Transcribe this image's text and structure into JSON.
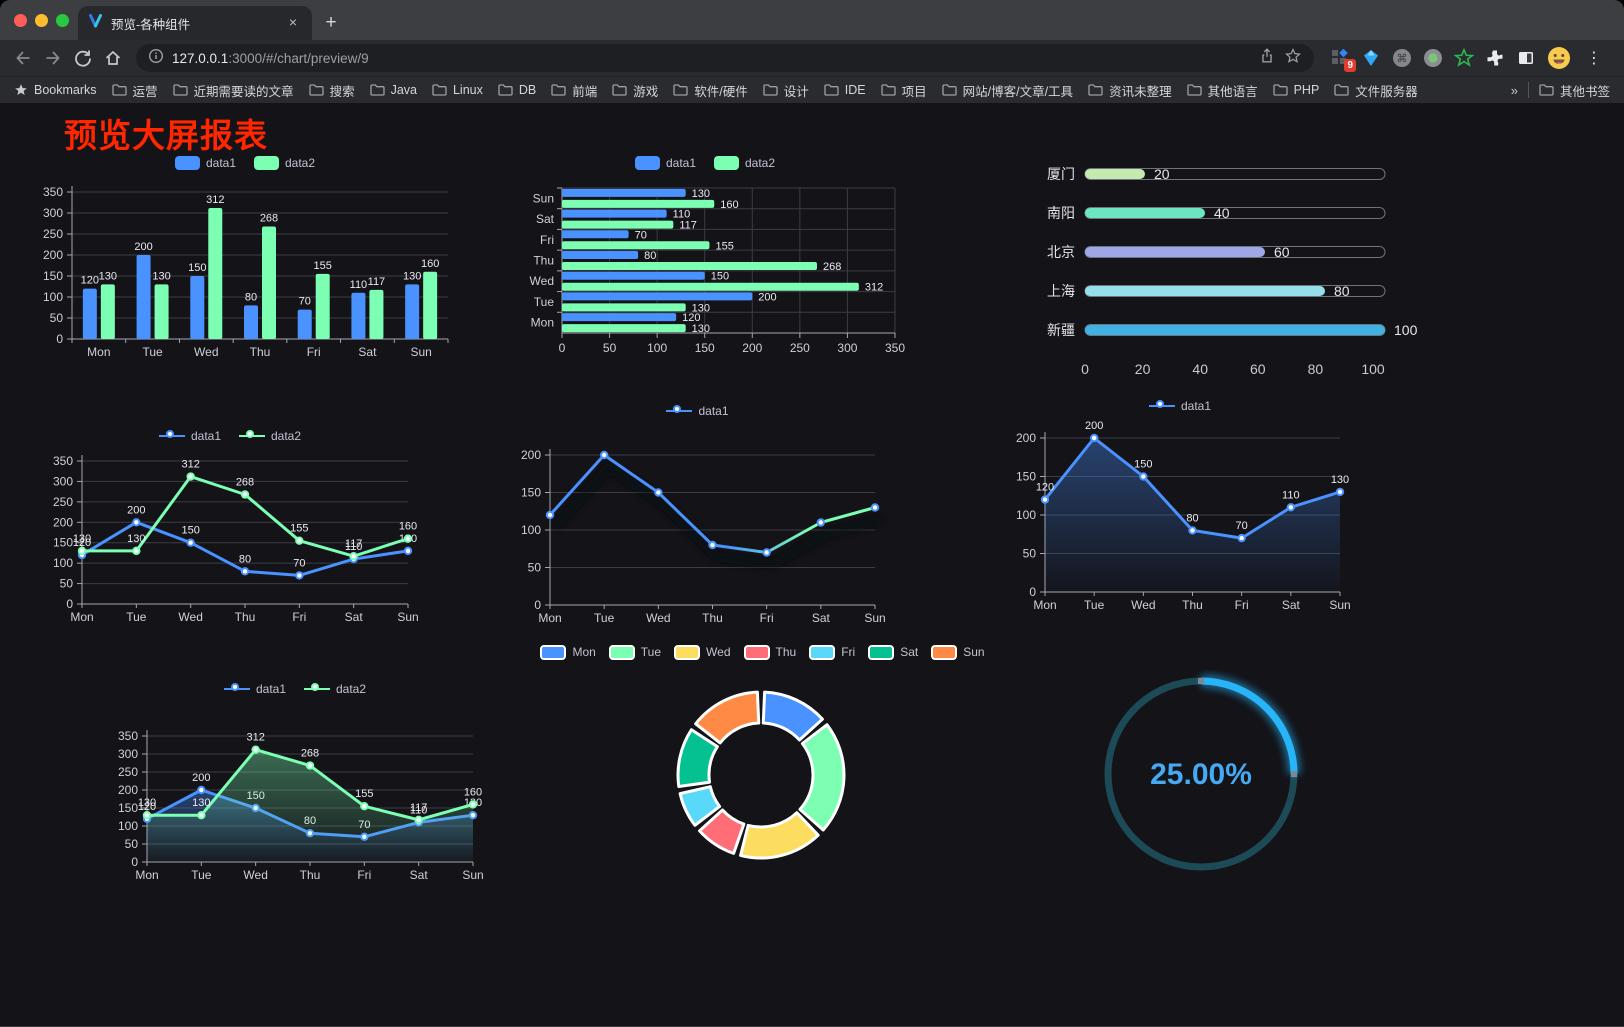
{
  "browser": {
    "tab": {
      "title": "预览-各种组件"
    },
    "close_tab_icon": "×",
    "new_tab_icon": "+",
    "url": {
      "host": "127.0.0.1",
      "rest": ":3000/#/chart/preview/9",
      "full": "127.0.0.1:3000/#/chart/preview/9"
    },
    "bookmarks_bar": {
      "bookmarks_label": "Bookmarks",
      "items": [
        "运营",
        "近期需要读的文章",
        "搜索",
        "Java",
        "Linux",
        "DB",
        "前端",
        "游戏",
        "软件/硬件",
        "设计",
        "IDE",
        "项目",
        "网站/博客/文章/工具",
        "资讯未整理",
        "其他语言",
        "PHP",
        "文件服务器"
      ],
      "overflow_chevron": "»",
      "other_bookmarks": "其他书签"
    },
    "extensions_badge": "9",
    "menu_icon": "⋮"
  },
  "page": {
    "title": "预览大屏报表",
    "title_color": "#ff2600",
    "background": "#131318"
  },
  "palette": {
    "data1": "#4992ff",
    "data2": "#7cffb2"
  },
  "chart_data": [
    {
      "id": "c1",
      "type": "bar",
      "title": "",
      "legend_type": "rect",
      "categories": [
        "Mon",
        "Tue",
        "Wed",
        "Thu",
        "Fri",
        "Sat",
        "Sun"
      ],
      "series": [
        {
          "name": "data1",
          "color": "#4992ff",
          "values": [
            120,
            200,
            150,
            80,
            70,
            110,
            130
          ]
        },
        {
          "name": "data2",
          "color": "#7cffb2",
          "values": [
            130,
            130,
            312,
            268,
            155,
            117,
            160
          ]
        }
      ],
      "yticks": [
        0,
        50,
        100,
        150,
        200,
        250,
        300,
        350
      ],
      "ymax": 350,
      "labels": true
    },
    {
      "id": "c2",
      "type": "hbar",
      "title": "",
      "legend_type": "rect",
      "categories": [
        "Mon",
        "Tue",
        "Wed",
        "Thu",
        "Fri",
        "Sat",
        "Sun"
      ],
      "categories_display": [
        "Sun",
        "Sat",
        "Fri",
        "Thu",
        "Wed",
        "Tue",
        "Mon"
      ],
      "series": [
        {
          "name": "data1",
          "color": "#4992ff",
          "values": [
            120,
            200,
            150,
            80,
            70,
            110,
            130
          ]
        },
        {
          "name": "data2",
          "color": "#7cffb2",
          "values": [
            130,
            130,
            312,
            268,
            155,
            117,
            160
          ]
        }
      ],
      "xticks": [
        0,
        50,
        100,
        150,
        200,
        250,
        300,
        350
      ],
      "xmax": 350,
      "labels": true
    },
    {
      "id": "c3",
      "type": "progress",
      "title": "",
      "rows": [
        {
          "label": "厦门",
          "value": 20,
          "color": "#c4ebad"
        },
        {
          "label": "南阳",
          "value": 40,
          "color": "#6be6c1"
        },
        {
          "label": "北京",
          "value": 60,
          "color": "#a0a7e6"
        },
        {
          "label": "上海",
          "value": 80,
          "color": "#96dee8"
        },
        {
          "label": "新疆",
          "value": 100,
          "color": "#3fb1e3"
        }
      ],
      "xticks": [
        0,
        20,
        40,
        60,
        80,
        100
      ],
      "max": 100
    },
    {
      "id": "c4",
      "type": "line",
      "title": "",
      "legend_type": "line",
      "categories": [
        "Mon",
        "Tue",
        "Wed",
        "Thu",
        "Fri",
        "Sat",
        "Sun"
      ],
      "series": [
        {
          "name": "data1",
          "color": "#4992ff",
          "values": [
            120,
            200,
            150,
            80,
            70,
            110,
            130
          ]
        },
        {
          "name": "data2",
          "color": "#7cffb2",
          "values": [
            130,
            130,
            312,
            268,
            155,
            117,
            160
          ]
        }
      ],
      "yticks": [
        0,
        50,
        100,
        150,
        200,
        250,
        300,
        350
      ],
      "ymax": 350,
      "labels": true
    },
    {
      "id": "c5",
      "type": "line",
      "title": "",
      "legend_type": "line",
      "categories": [
        "Mon",
        "Tue",
        "Wed",
        "Thu",
        "Fri",
        "Sat",
        "Sun"
      ],
      "series": [
        {
          "name": "data1",
          "color": "#4992ff",
          "values": [
            120,
            200,
            150,
            80,
            70,
            110,
            130
          ]
        }
      ],
      "gradient_to": "#7cffb2",
      "yticks": [
        0,
        50,
        100,
        150,
        200
      ],
      "ymax": 200,
      "labels": false
    },
    {
      "id": "c6",
      "type": "line",
      "area": true,
      "title": "",
      "legend_type": "line",
      "categories": [
        "Mon",
        "Tue",
        "Wed",
        "Thu",
        "Fri",
        "Sat",
        "Sun"
      ],
      "series": [
        {
          "name": "data1",
          "color": "#4992ff",
          "values": [
            120,
            200,
            150,
            80,
            70,
            110,
            130
          ]
        }
      ],
      "yticks": [
        0,
        50,
        100,
        150,
        200
      ],
      "ymax": 200,
      "labels": true
    },
    {
      "id": "c7",
      "type": "line",
      "area": true,
      "title": "",
      "legend_type": "line",
      "categories": [
        "Mon",
        "Tue",
        "Wed",
        "Thu",
        "Fri",
        "Sat",
        "Sun"
      ],
      "series": [
        {
          "name": "data1",
          "color": "#4992ff",
          "values": [
            120,
            200,
            150,
            80,
            70,
            110,
            130
          ]
        },
        {
          "name": "data2",
          "color": "#7cffb2",
          "values": [
            130,
            130,
            312,
            268,
            155,
            117,
            160
          ]
        }
      ],
      "yticks": [
        0,
        50,
        100,
        150,
        200,
        250,
        300,
        350
      ],
      "ymax": 350,
      "labels": true
    },
    {
      "id": "c8",
      "type": "pie",
      "title": "",
      "legend_type": "pie",
      "labels": [
        "Mon",
        "Tue",
        "Wed",
        "Thu",
        "Fri",
        "Sat",
        "Sun"
      ],
      "values": [
        120,
        200,
        150,
        80,
        70,
        110,
        130
      ],
      "colors": [
        "#4992ff",
        "#7cffb2",
        "#fddd60",
        "#ff6e76",
        "#58d9f9",
        "#05c091",
        "#ff8a45"
      ]
    },
    {
      "id": "c9",
      "type": "gauge",
      "title": "",
      "label": "25.00%",
      "value": 25,
      "max": 100,
      "arc_color": "#28b4f8",
      "track_color": "#1d4a57",
      "text_color": "#45a9f3"
    }
  ]
}
